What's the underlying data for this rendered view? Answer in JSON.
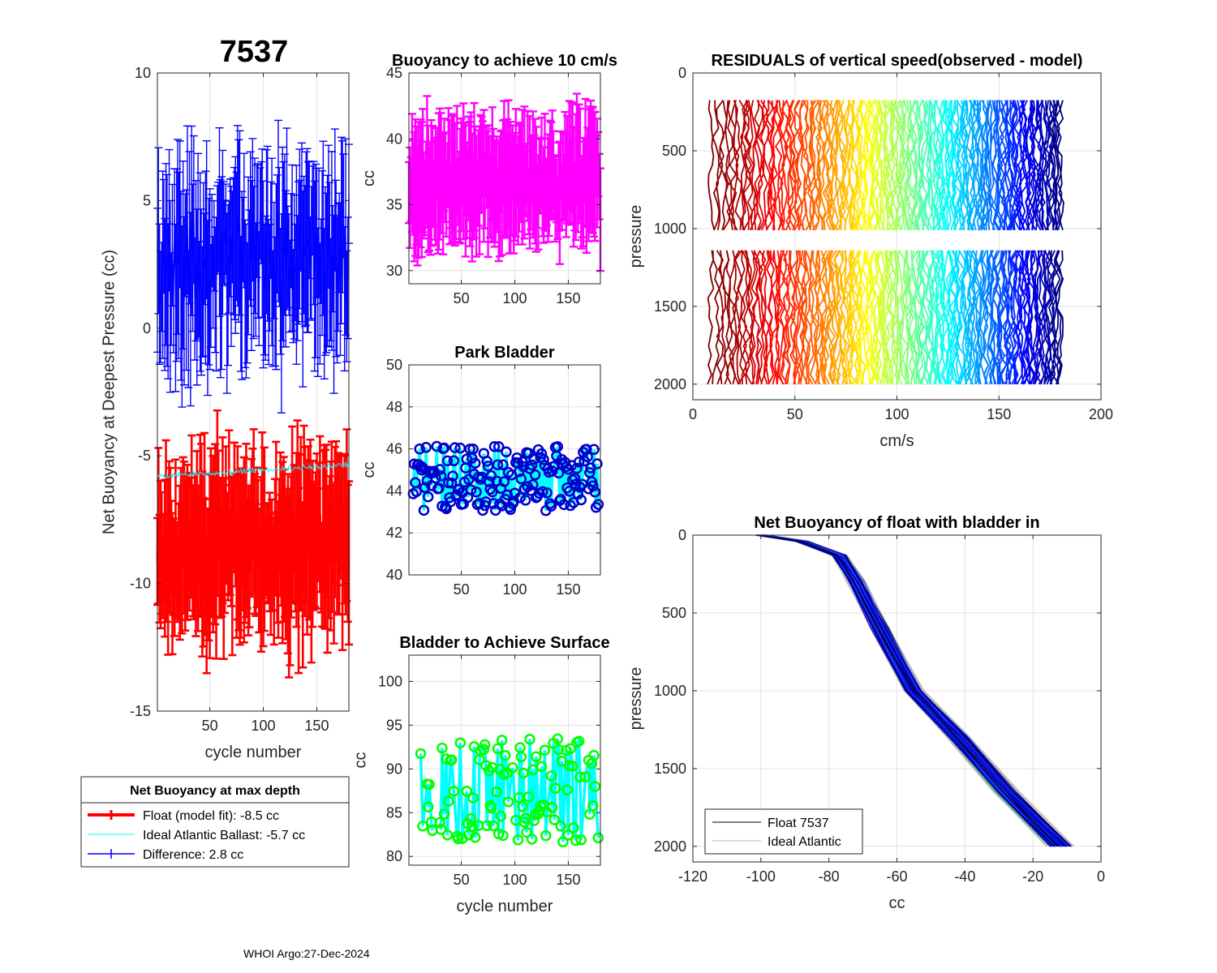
{
  "figure_title": "7537",
  "footer": "WHOI Argo:27-Dec-2024",
  "colors": {
    "blue": "#0000ff",
    "red": "#ff0000",
    "cyan": "#00ffff",
    "magenta": "#ff00ff",
    "green": "#00ff00",
    "darkblue": "#0000cd",
    "grid": "#e6e6e6"
  },
  "chart_data": [
    {
      "id": "net-buoyancy",
      "type": "line",
      "title": "",
      "xlabel": "cycle number",
      "ylabel": "Net Buoyancy at Deepest Pressure (cc)",
      "xlim": [
        1,
        180
      ],
      "ylim": [
        -15,
        10
      ],
      "xticks": [
        50,
        100,
        150
      ],
      "yticks": [
        -15,
        -10,
        -5,
        0,
        5,
        10
      ],
      "series": [
        {
          "name": "Difference",
          "color": "#0000ff",
          "mean": 2.8,
          "spread": 2.2,
          "errorbar": 3.0
        },
        {
          "name": "Float (model fit)",
          "color": "#ff0000",
          "mean": -8.5,
          "spread": 1.6,
          "errorbar": 2.8
        },
        {
          "name": "Ideal Atlantic Ballast",
          "color": "#00ffff",
          "start": -5.8,
          "end": -5.35
        }
      ],
      "legend": {
        "title": "Net Buoyancy at max depth",
        "entries": [
          {
            "label": "Float (model fit):  -8.5 cc",
            "color": "#ff0000"
          },
          {
            "label": "Ideal Atlantic Ballast:  -5.7 cc",
            "color": "#00ffff"
          },
          {
            "label": "Difference:   2.8 cc",
            "color": "#0000ff"
          }
        ]
      }
    },
    {
      "id": "buoyancy-10cms",
      "type": "line",
      "title": "Buoyancy to achieve 10 cm/s",
      "xlabel": "",
      "ylabel": "cc",
      "xlim": [
        1,
        180
      ],
      "ylim": [
        29,
        45
      ],
      "xticks": [
        50,
        100,
        150
      ],
      "yticks": [
        30,
        35,
        40,
        45
      ],
      "series": [
        {
          "name": "buoyancy",
          "color": "#ff00ff",
          "mean": 36.8,
          "spread": 1.8,
          "errorbar": 4.0
        }
      ]
    },
    {
      "id": "park-bladder",
      "type": "line",
      "title": "Park Bladder",
      "xlabel": "",
      "ylabel": "cc",
      "xlim": [
        1,
        180
      ],
      "ylim": [
        40,
        50
      ],
      "xticks": [
        50,
        100,
        150
      ],
      "yticks": [
        40,
        42,
        44,
        46,
        48,
        50
      ],
      "series": [
        {
          "name": "park bladder",
          "line_color": "#00ffff",
          "marker_color": "#0000cd",
          "mean": 44.6,
          "spread": 1.3
        }
      ]
    },
    {
      "id": "bladder-surface",
      "type": "line",
      "title": "Bladder to Achieve Surface",
      "xlabel": "cycle number",
      "ylabel": "cc",
      "xlim": [
        1,
        180
      ],
      "ylim": [
        79,
        103
      ],
      "xticks": [
        50,
        100,
        150
      ],
      "yticks": [
        80,
        85,
        90,
        95,
        100
      ],
      "series": [
        {
          "name": "surface bladder",
          "line_color": "#00ffff",
          "marker_color": "#00ff00",
          "mean": 87.5,
          "spread": 5.0
        }
      ]
    },
    {
      "id": "residuals",
      "type": "line",
      "title": "RESIDUALS of vertical speed(observed - model)",
      "xlabel": "cm/s",
      "ylabel": "pressure",
      "xlim": [
        0,
        200
      ],
      "ylim": [
        2100,
        0
      ],
      "xticks": [
        0,
        50,
        100,
        150,
        200
      ],
      "yticks": [
        0,
        500,
        1000,
        1500,
        2000
      ],
      "profiles": {
        "x_start": 9,
        "x_end": 180,
        "count": 180,
        "upper_range": [
          175,
          1010
        ],
        "lower_range": [
          1140,
          2000
        ],
        "colormap": "jet"
      }
    },
    {
      "id": "net-buoyancy-bladder",
      "type": "line",
      "title": "Net Buoyancy of float with bladder in",
      "xlabel": "cc",
      "ylabel": "pressure",
      "xlim": [
        -120,
        0
      ],
      "ylim": [
        2100,
        0
      ],
      "xticks": [
        -120,
        -100,
        -80,
        -60,
        -40,
        -20,
        0
      ],
      "yticks": [
        0,
        500,
        1000,
        1500,
        2000
      ],
      "profile_points": [
        [
          -100,
          0
        ],
        [
          -88,
          40
        ],
        [
          -77,
          130
        ],
        [
          -72,
          300
        ],
        [
          -65,
          600
        ],
        [
          -55,
          1000
        ],
        [
          -42,
          1300
        ],
        [
          -28,
          1650
        ],
        [
          -12,
          2000
        ]
      ],
      "legend": {
        "entries": [
          {
            "label": "Float 7537",
            "color": "#000000"
          },
          {
            "label": "Ideal Atlantic",
            "color": "#b3b3b3"
          }
        ]
      }
    }
  ]
}
